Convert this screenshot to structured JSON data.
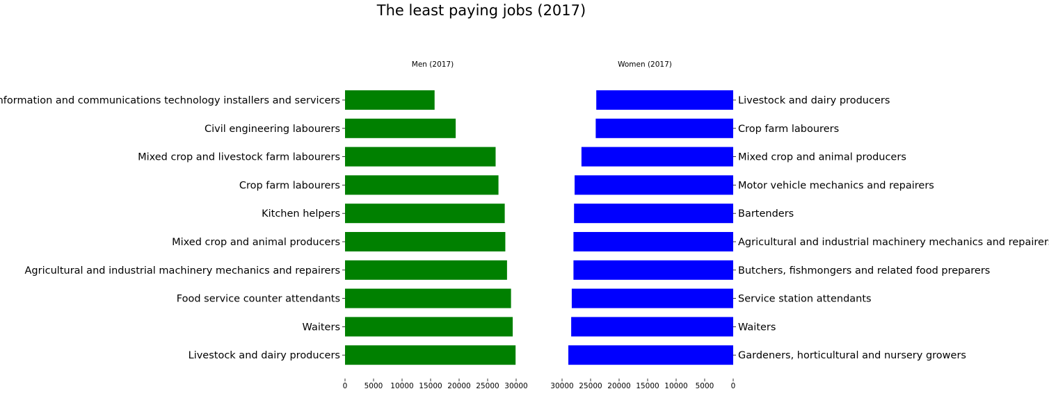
{
  "title": "The least paying jobs (2017)",
  "colors": {
    "men": "#008000",
    "women": "#0000ff"
  },
  "chart_data": [
    {
      "type": "bar",
      "orientation": "horizontal",
      "title": "Men (2017)",
      "categories": [
        "Information and communications technology installers and servicers",
        "Civil engineering labourers",
        "Mixed crop and livestock farm labourers",
        "Crop farm labourers",
        "Kitchen helpers",
        "Mixed crop and animal producers",
        "Agricultural and industrial machinery mechanics and repairers",
        "Food service counter attendants",
        "Waiters",
        "Livestock and dairy producers"
      ],
      "values": [
        15700,
        19400,
        26400,
        26900,
        28000,
        28100,
        28400,
        29100,
        29400,
        29900
      ],
      "xlim": [
        0,
        30000
      ],
      "xticks": [
        0,
        5000,
        10000,
        15000,
        20000,
        25000,
        30000
      ],
      "xaxis_direction": "normal",
      "category_labels_side": "left",
      "color": "#008000",
      "grid": false
    },
    {
      "type": "bar",
      "orientation": "horizontal",
      "title": "Women (2017)",
      "categories": [
        "Livestock and dairy producers",
        "Crop farm labourers",
        "Mixed crop and animal producers",
        "Motor vehicle mechanics and repairers",
        "Bartenders",
        "Agricultural and industrial machinery mechanics and repairers",
        "Butchers, fishmongers and related food preparers",
        "Service station attendants",
        "Waiters",
        "Gardeners, horticultural and nursery growers"
      ],
      "values": [
        24000,
        24100,
        26600,
        27800,
        27900,
        28000,
        28000,
        28300,
        28400,
        28900
      ],
      "xlim": [
        0,
        30000
      ],
      "xticks": [
        0,
        5000,
        10000,
        15000,
        20000,
        25000,
        30000
      ],
      "xaxis_direction": "reversed",
      "category_labels_side": "right",
      "color": "#0000ff",
      "grid": false
    }
  ]
}
